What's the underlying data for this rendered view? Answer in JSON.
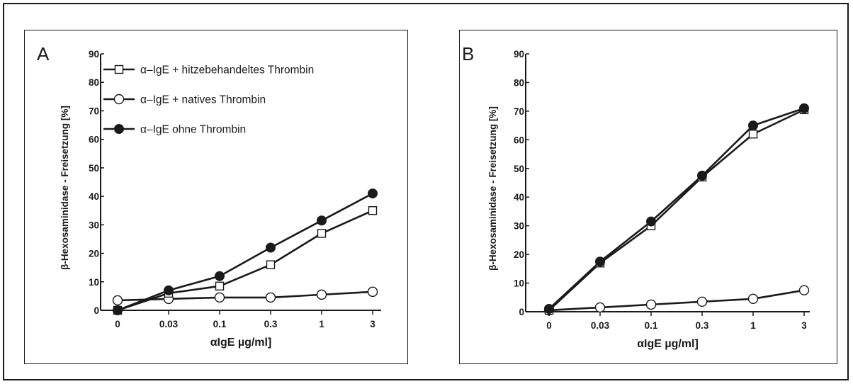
{
  "chart_data": [
    {
      "type": "line",
      "panel_label": "A",
      "xlabel": "αIgE µg/ml]",
      "ylabel": "β-Hexosaminidase - Freisetzung [%]",
      "categories": [
        "0",
        "0.03",
        "0.1",
        "0.3",
        "1",
        "3"
      ],
      "ylim": [
        0,
        90
      ],
      "yticks": [
        0,
        10,
        20,
        30,
        40,
        50,
        60,
        70,
        80,
        90
      ],
      "legend_position": "top-left",
      "grid": false,
      "series": [
        {
          "name": "α–IgE + hitzebehandeltes Thrombin",
          "marker": "open-square",
          "values": [
            0,
            6,
            8.5,
            16,
            27,
            35
          ]
        },
        {
          "name": "α–IgE + natives Thrombin",
          "marker": "open-circle",
          "values": [
            3.5,
            4,
            4.5,
            4.5,
            5.5,
            6.5
          ]
        },
        {
          "name": "α–IgE ohne Thrombin",
          "marker": "filled-circle",
          "values": [
            0,
            7,
            12,
            22,
            31.5,
            41
          ]
        }
      ]
    },
    {
      "type": "line",
      "panel_label": "B",
      "xlabel": "αIgE µg/ml]",
      "ylabel": "β-Hexosaminidase - Freisetzung [%]",
      "categories": [
        "0",
        "0.03",
        "0.1",
        "0.3",
        "1",
        "3"
      ],
      "ylim": [
        0,
        90
      ],
      "yticks": [
        0,
        10,
        20,
        30,
        40,
        50,
        60,
        70,
        80,
        90
      ],
      "grid": false,
      "series": [
        {
          "name": "α–IgE + hitzebehandeltes Thrombin",
          "marker": "open-square",
          "values": [
            0.5,
            17,
            30,
            47,
            62,
            70.5
          ]
        },
        {
          "name": "α–IgE + natives Thrombin",
          "marker": "open-circle",
          "values": [
            0.5,
            1.5,
            2.5,
            3.5,
            4.5,
            7.5
          ]
        },
        {
          "name": "α–IgE ohne Thrombin",
          "marker": "filled-circle",
          "values": [
            1,
            17.5,
            31.5,
            47.5,
            65,
            71
          ]
        }
      ]
    }
  ],
  "colors": {
    "ink": "#1a1a1a",
    "background": "#ffffff"
  }
}
